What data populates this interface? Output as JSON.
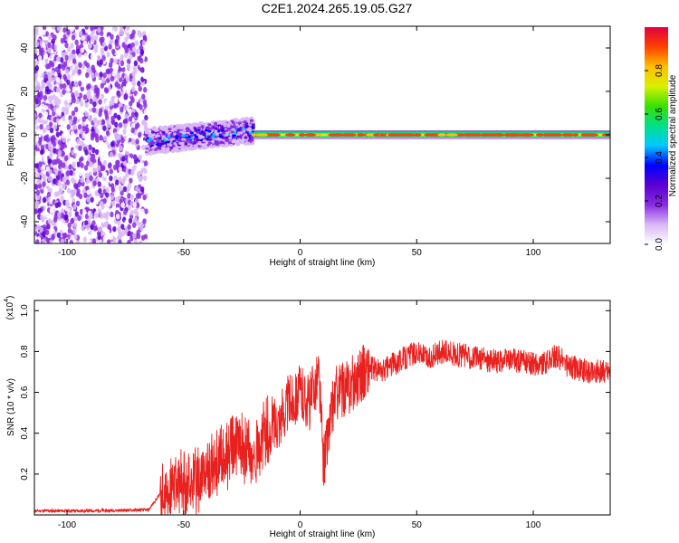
{
  "title": "C2E1.2024.265.19.05.G27",
  "colors": {
    "snr_line": "#e8201e",
    "frame": "#000000"
  },
  "chart_data": [
    {
      "type": "heatmap",
      "xlabel": "Height of straight line (km)",
      "ylabel": "Frequency (Hz)",
      "xlim": [
        -114,
        133
      ],
      "ylim": [
        -50,
        50
      ],
      "x_ticks": [
        -100,
        -50,
        0,
        50,
        100
      ],
      "y_ticks": [
        -40,
        -20,
        0,
        20,
        40
      ],
      "colorbar": {
        "label": "Normalized spectral amplitude",
        "range": [
          0,
          1
        ],
        "ticks": [
          0.0,
          0.2,
          0.4,
          0.6,
          0.8
        ],
        "colormap": [
          "#ffffff",
          "#d9b8f5",
          "#8a2be2",
          "#5a00d0",
          "#0000ff",
          "#00c8ff",
          "#00e08a",
          "#39e000",
          "#d8f000",
          "#ffc000",
          "#ff4000",
          "#e0003c"
        ]
      },
      "regions": [
        {
          "x": [
            -114,
            -66
          ],
          "description_level": "noise",
          "freq_spread": [
            -50,
            50
          ],
          "amplitude_max": 0.25
        },
        {
          "x": [
            -66,
            -20
          ],
          "freq_center": [
            -3,
            2
          ],
          "freq_width": 6,
          "amplitude_max": 0.55
        },
        {
          "x": [
            -20,
            133
          ],
          "freq_center": 0,
          "freq_width": 2,
          "amplitude_max": 0.95
        }
      ]
    },
    {
      "type": "line",
      "xlabel": "Height of straight line (km)",
      "ylabel": "SNR (10 * v/v)",
      "y_multiplier": "(x10^4)",
      "xlim": [
        -114,
        133
      ],
      "ylim": [
        0,
        1.05
      ],
      "x_ticks": [
        -100,
        -50,
        0,
        50,
        100
      ],
      "y_ticks": [
        0.2,
        0.4,
        0.6,
        0.8,
        1.0
      ],
      "series": [
        {
          "x": [
            -114,
            -90,
            -65,
            -59,
            -55,
            -50,
            -45,
            -40,
            -35,
            -30,
            -25,
            -20,
            -15,
            -12,
            -8,
            -5,
            0,
            4,
            8,
            10,
            15,
            20,
            25,
            30,
            35,
            40,
            45,
            50,
            55,
            60,
            65,
            70,
            75,
            80,
            85,
            90,
            95,
            100,
            105,
            110,
            115,
            120,
            125,
            133
          ],
          "y": [
            0.02,
            0.02,
            0.025,
            0.12,
            0.17,
            0.2,
            0.22,
            0.25,
            0.3,
            0.35,
            0.4,
            0.3,
            0.45,
            0.45,
            0.48,
            0.55,
            0.6,
            0.55,
            0.7,
            0.25,
            0.6,
            0.62,
            0.68,
            0.72,
            0.7,
            0.74,
            0.77,
            0.8,
            0.76,
            0.8,
            0.79,
            0.78,
            0.77,
            0.76,
            0.75,
            0.76,
            0.75,
            0.74,
            0.74,
            0.78,
            0.73,
            0.71,
            0.7,
            0.71
          ]
        }
      ]
    }
  ],
  "labels": {
    "top_xlabel": "Height of straight line (km)",
    "top_ylabel": "Frequency (Hz)",
    "bottom_xlabel": "Height of straight line (km)",
    "bottom_ylabel": "SNR (10 * v/v)",
    "multiplier_base": "(x10",
    "multiplier_exp": "4",
    "multiplier_close": ")",
    "colorbar_label": "Normalized spectral amplitude"
  }
}
